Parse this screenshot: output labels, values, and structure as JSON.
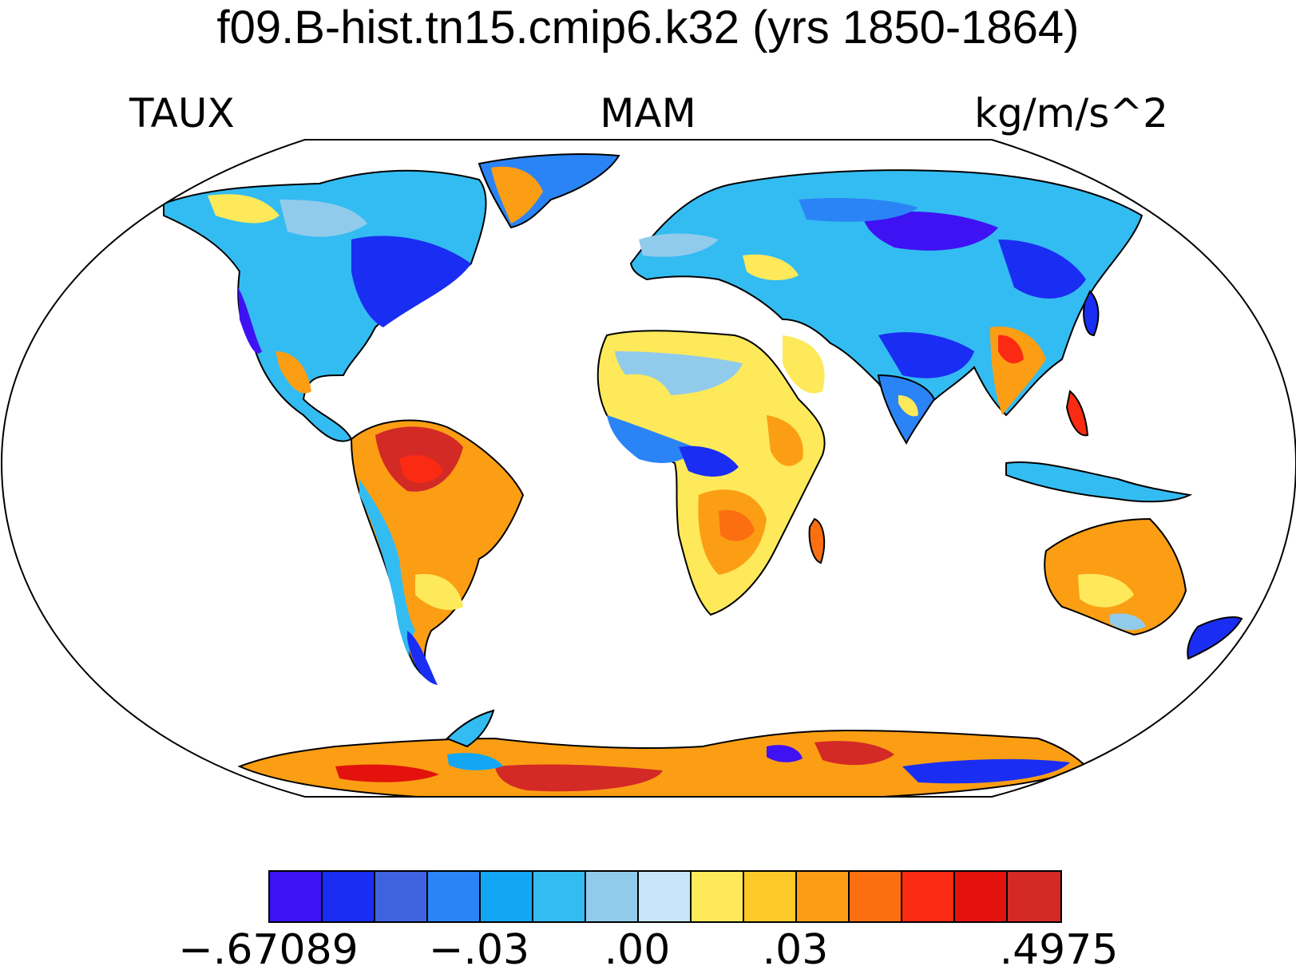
{
  "title": "f09.B-hist.tn15.cmip6.k32 (yrs 1850-1864)",
  "left_label": "TAUX",
  "center_label": "MAM",
  "right_label": "kg/m/s^2",
  "colorbar": {
    "colors": [
      "#3f12f4",
      "#1a2df2",
      "#3f63e0",
      "#2b84f5",
      "#12a6f5",
      "#33bcf2",
      "#91cbec",
      "#c7e5f8",
      "#fde95a",
      "#fcc928",
      "#fb9e14",
      "#fb6f10",
      "#fb2a13",
      "#e3120c",
      "#d32a25"
    ],
    "labels": [
      "−.67089",
      "−.03",
      ".00",
      ".03",
      ".4975"
    ],
    "label_box_index": [
      0,
      4,
      7,
      10,
      15
    ]
  }
}
